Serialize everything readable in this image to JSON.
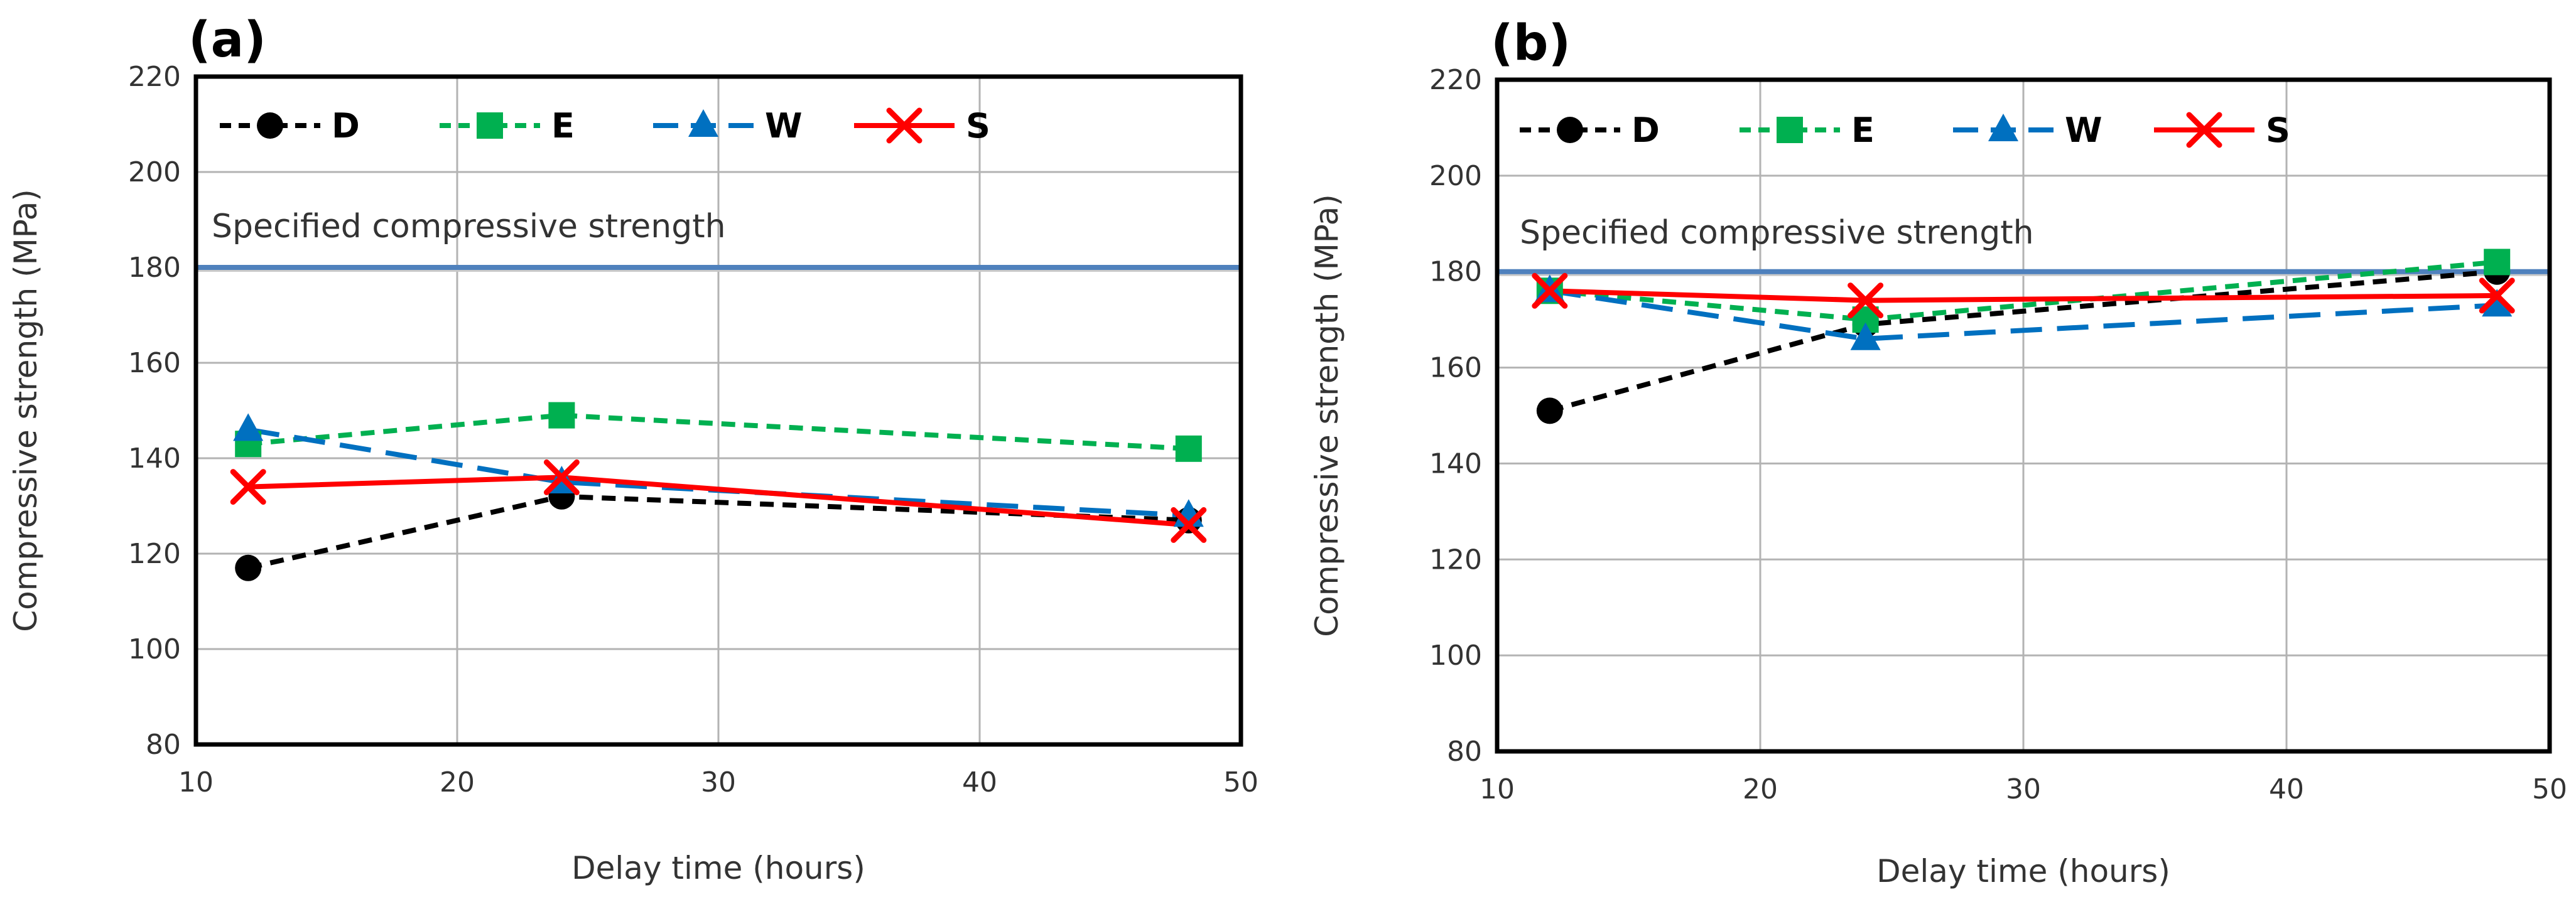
{
  "chart_data": [
    {
      "type": "line",
      "panel_label": "(a)",
      "xlabel": "Delay time (hours)",
      "ylabel": "Compressive strength (MPa)",
      "xlim": [
        10,
        50
      ],
      "ylim": [
        80,
        220
      ],
      "xticks": [
        10,
        20,
        30,
        40,
        50
      ],
      "yticks": [
        80,
        100,
        120,
        140,
        160,
        180,
        200,
        220
      ],
      "x": [
        12,
        24,
        48
      ],
      "series": [
        {
          "name": "D",
          "values": [
            117,
            132,
            127
          ],
          "color": "#000000",
          "marker": "circle",
          "dash": "dash"
        },
        {
          "name": "E",
          "values": [
            143,
            149,
            142
          ],
          "color": "#00B050",
          "marker": "square",
          "dash": "dash"
        },
        {
          "name": "W",
          "values": [
            146,
            135,
            128
          ],
          "color": "#0070C0",
          "marker": "triangle",
          "dash": "longdash"
        },
        {
          "name": "S",
          "values": [
            134,
            136,
            126
          ],
          "color": "#FF0000",
          "marker": "x",
          "dash": "solid"
        }
      ],
      "reference_line": {
        "label": "Specified compressive strength",
        "value": 180,
        "color": "#4F81BD"
      },
      "grid": true,
      "legend": "top-left"
    },
    {
      "type": "line",
      "panel_label": "(b)",
      "xlabel": "Delay time (hours)",
      "ylabel": "Compressive strength (MPa)",
      "xlim": [
        10,
        50
      ],
      "ylim": [
        80,
        220
      ],
      "xticks": [
        10,
        20,
        30,
        40,
        50
      ],
      "yticks": [
        80,
        100,
        120,
        140,
        160,
        180,
        200,
        220
      ],
      "x": [
        12,
        24,
        48
      ],
      "series": [
        {
          "name": "D",
          "values": [
            151,
            169,
            180
          ],
          "color": "#000000",
          "marker": "circle",
          "dash": "dash"
        },
        {
          "name": "E",
          "values": [
            176,
            170,
            182
          ],
          "color": "#00B050",
          "marker": "square",
          "dash": "dash"
        },
        {
          "name": "W",
          "values": [
            176,
            166,
            173
          ],
          "color": "#0070C0",
          "marker": "triangle",
          "dash": "longdash"
        },
        {
          "name": "S",
          "values": [
            176,
            174,
            175
          ],
          "color": "#FF0000",
          "marker": "x",
          "dash": "solid"
        }
      ],
      "reference_line": {
        "label": "Specified compressive strength",
        "value": 180,
        "color": "#4F81BD"
      },
      "grid": true,
      "legend": "top-left"
    }
  ]
}
